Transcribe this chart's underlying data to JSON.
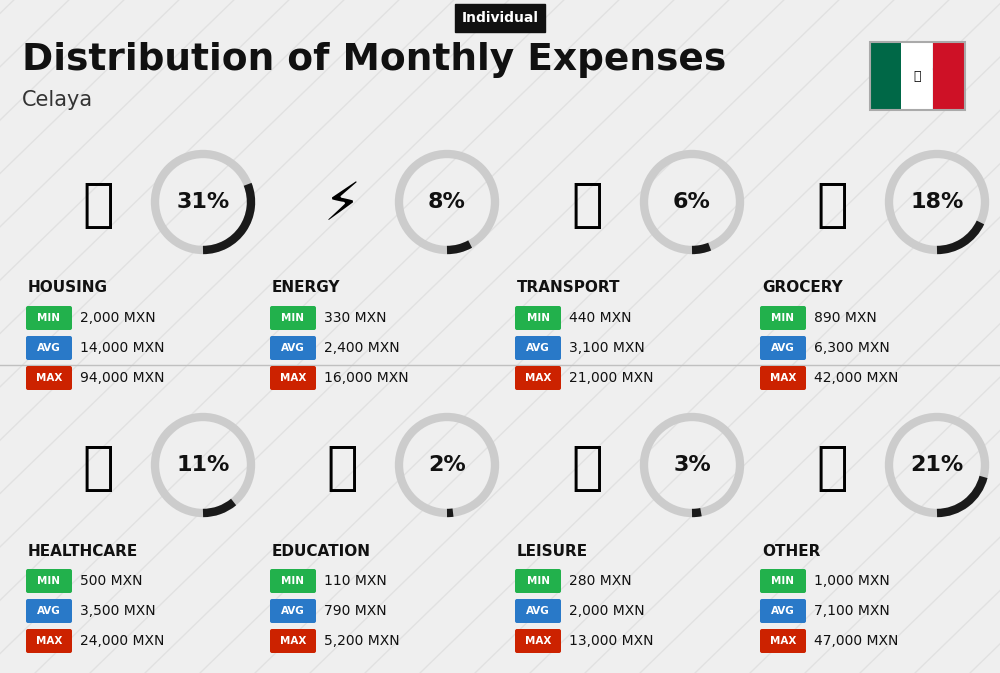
{
  "title": "Distribution of Monthly Expenses",
  "subtitle": "Individual",
  "city": "Celaya",
  "background_color": "#efefef",
  "categories": [
    {
      "name": "HOUSING",
      "pct": 31,
      "min": "2,000 MXN",
      "avg": "14,000 MXN",
      "max": "94,000 MXN",
      "col": 0,
      "row": 0
    },
    {
      "name": "ENERGY",
      "pct": 8,
      "min": "330 MXN",
      "avg": "2,400 MXN",
      "max": "16,000 MXN",
      "col": 1,
      "row": 0
    },
    {
      "name": "TRANSPORT",
      "pct": 6,
      "min": "440 MXN",
      "avg": "3,100 MXN",
      "max": "21,000 MXN",
      "col": 2,
      "row": 0
    },
    {
      "name": "GROCERY",
      "pct": 18,
      "min": "890 MXN",
      "avg": "6,300 MXN",
      "max": "42,000 MXN",
      "col": 3,
      "row": 0
    },
    {
      "name": "HEALTHCARE",
      "pct": 11,
      "min": "500 MXN",
      "avg": "3,500 MXN",
      "max": "24,000 MXN",
      "col": 0,
      "row": 1
    },
    {
      "name": "EDUCATION",
      "pct": 2,
      "min": "110 MXN",
      "avg": "790 MXN",
      "max": "5,200 MXN",
      "col": 1,
      "row": 1
    },
    {
      "name": "LEISURE",
      "pct": 3,
      "min": "280 MXN",
      "avg": "2,000 MXN",
      "max": "13,000 MXN",
      "col": 2,
      "row": 1
    },
    {
      "name": "OTHER",
      "pct": 21,
      "min": "1,000 MXN",
      "avg": "7,100 MXN",
      "max": "47,000 MXN",
      "col": 3,
      "row": 1
    }
  ],
  "min_color": "#22b14c",
  "avg_color": "#2979c8",
  "max_color": "#cc2200",
  "label_text_color": "#ffffff",
  "diagonal_line_color": "#d8d8d8",
  "arc_bg_color": "#cccccc",
  "arc_fg_color": "#1a1a1a",
  "icons": [
    "🏗",
    "⚡",
    "🚌",
    "🛒",
    "💗",
    "🎓",
    "🛍",
    "👜"
  ]
}
